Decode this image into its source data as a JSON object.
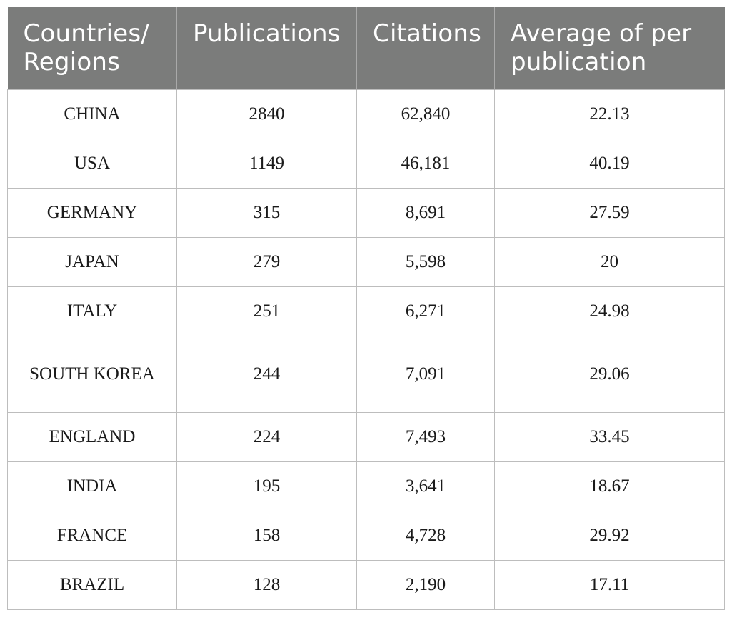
{
  "table": {
    "headers": [
      "Countries/ Regions",
      "Publications",
      "Citations",
      "Average of per publication"
    ],
    "rows": [
      [
        "CHINA",
        "2840",
        "62,840",
        "22.13"
      ],
      [
        "USA",
        "1149",
        "46,181",
        "40.19"
      ],
      [
        "GERMANY",
        "315",
        "8,691",
        "27.59"
      ],
      [
        "JAPAN",
        "279",
        "5,598",
        "20"
      ],
      [
        "ITALY",
        "251",
        "6,271",
        "24.98"
      ],
      [
        "SOUTH KOREA",
        "244",
        "7,091",
        "29.06"
      ],
      [
        "ENGLAND",
        "224",
        "7,493",
        "33.45"
      ],
      [
        "INDIA",
        "195",
        "3,641",
        "18.67"
      ],
      [
        "FRANCE",
        "158",
        "4,728",
        "29.92"
      ],
      [
        "BRAZIL",
        "128",
        "2,190",
        "17.11"
      ]
    ]
  },
  "colors": {
    "header_bg": "#7b7c7b",
    "header_text": "#ffffff",
    "grid": "#bdbdbd"
  }
}
